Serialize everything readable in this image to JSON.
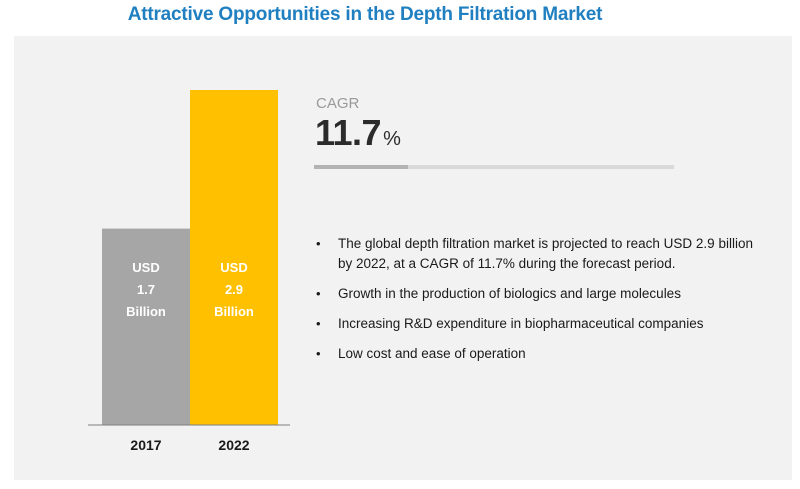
{
  "title": "Attractive Opportunities in the Depth Filtration Market",
  "cagr": {
    "label": "CAGR",
    "value": "11.7",
    "unit": "%",
    "fill_fraction": 0.26
  },
  "bullets": [
    "The global depth filtration market is projected to reach USD 2.9 billion by 2022, at a CAGR of 11.7% during the forecast period.",
    "Growth in the production of biologics and large molecules",
    "Increasing R&D expenditure in biopharmaceutical companies",
    "Low cost and ease of operation"
  ],
  "colors": {
    "title": "#1f7fc0",
    "bar_2017": "#a6a6a6",
    "bar_2022": "#ffc000",
    "panel": "#f2f2f2"
  },
  "chart_data": {
    "type": "bar",
    "categories": [
      "2017",
      "2022"
    ],
    "values": [
      1.7,
      2.9
    ],
    "bar_labels": [
      [
        "USD",
        "1.7",
        "Billion"
      ],
      [
        "USD",
        "2.9",
        "Billion"
      ]
    ],
    "unit": "USD Billion",
    "ylim": [
      0,
      2.9
    ],
    "colors": [
      "#a6a6a6",
      "#ffc000"
    ],
    "grid": false,
    "legend": "none"
  }
}
